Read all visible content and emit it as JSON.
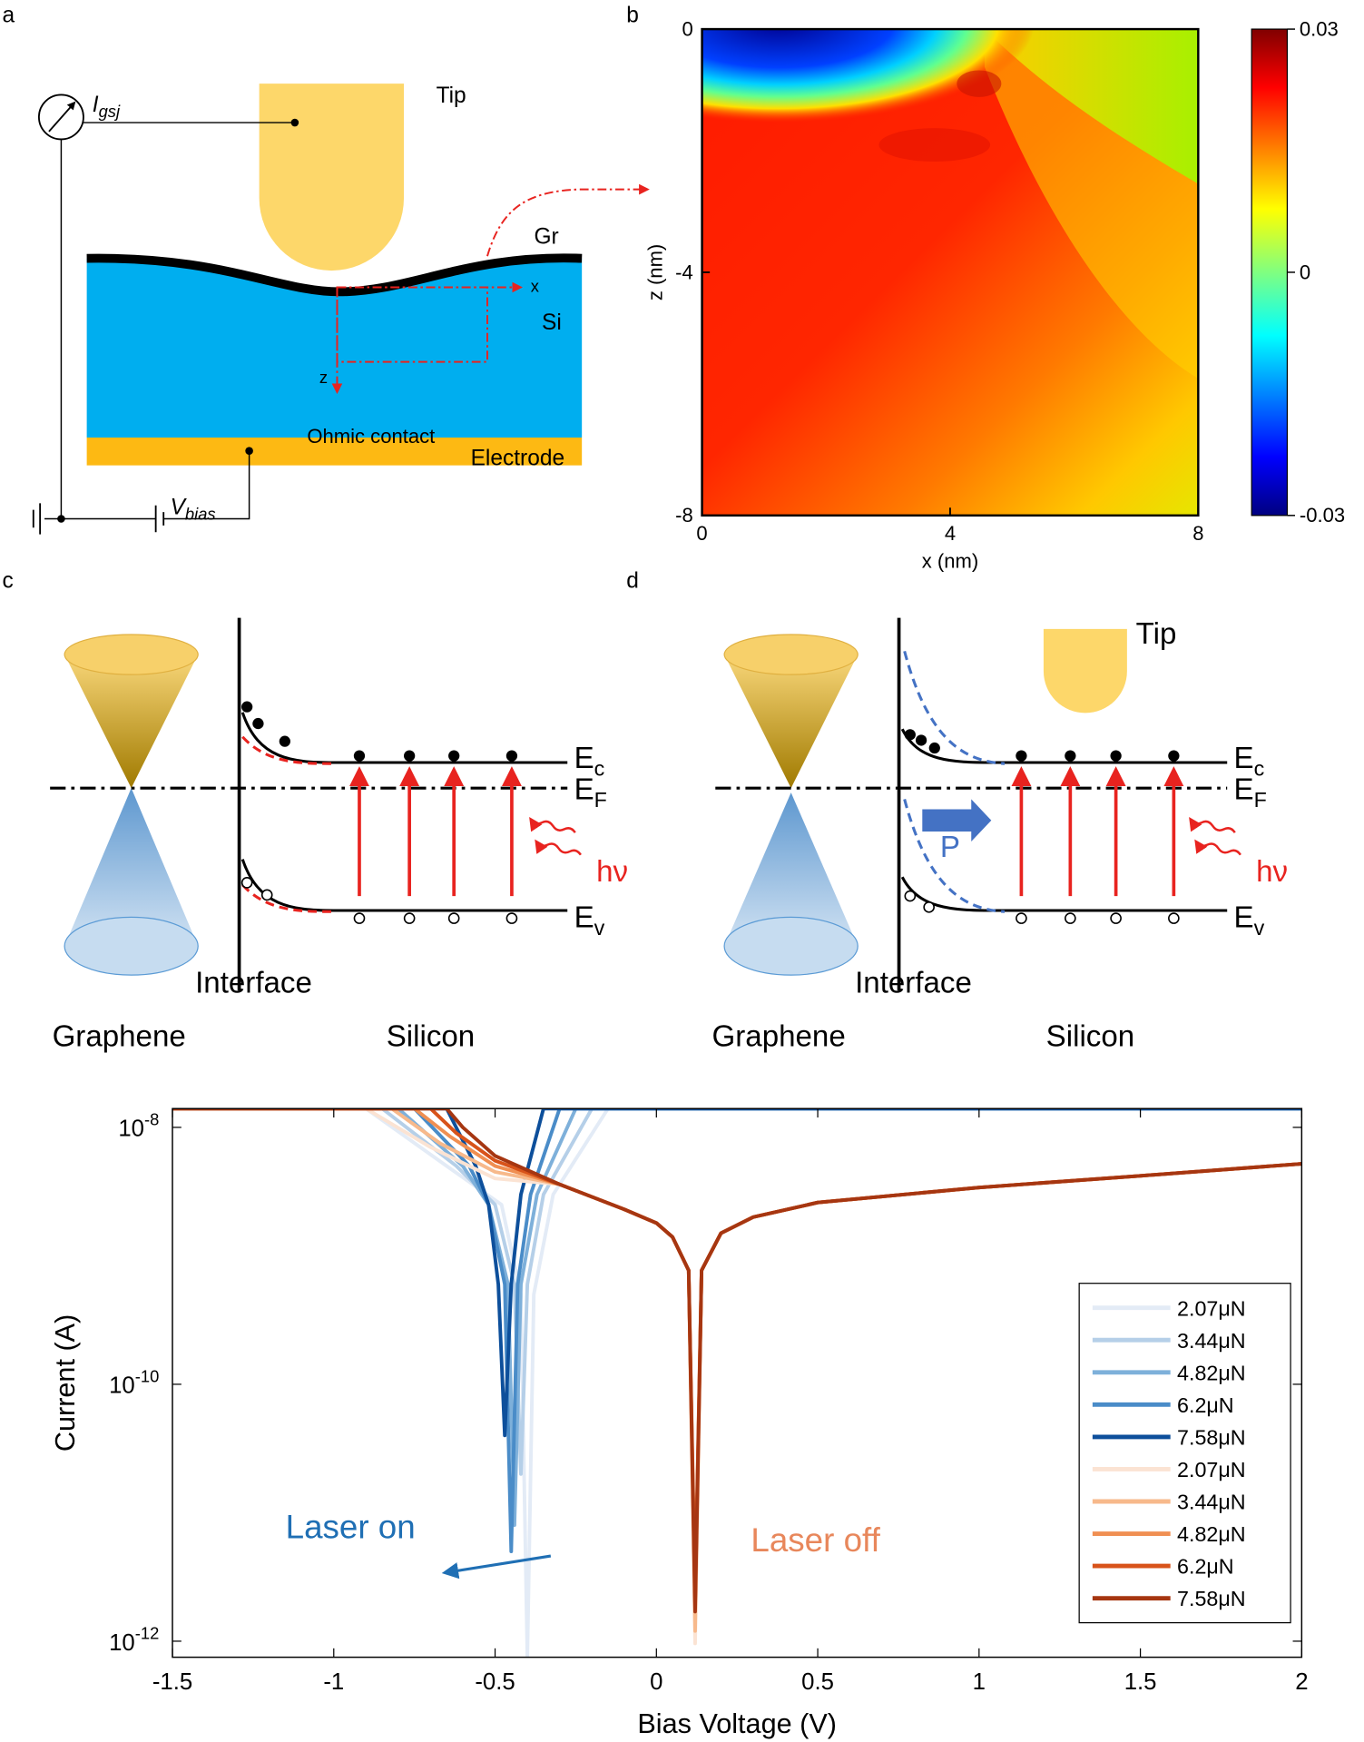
{
  "panel_labels": {
    "a": "a",
    "b": "b",
    "c": "c",
    "d": "d"
  },
  "panel_a": {
    "current": {
      "symbol": "I",
      "subscript": "gsj"
    },
    "tip": "Tip",
    "graphene": "Gr",
    "x_axis": "x",
    "silicon": "Si",
    "z_axis": "z",
    "contact": "Ohmic contact",
    "electrode": "Electrode",
    "bias": {
      "symbol": "V",
      "subscript": "bias"
    }
  },
  "panel_c": {
    "ec": {
      "symbol": "E",
      "subscript": "c"
    },
    "ef": {
      "symbol": "E",
      "subscript": "F"
    },
    "ev": {
      "symbol": "E",
      "subscript": "v"
    },
    "photon": "hν",
    "interface": "Interface",
    "left": "Graphene",
    "right": "Silicon"
  },
  "panel_d": {
    "tip": "Tip",
    "polarization": "P",
    "ec": {
      "symbol": "E",
      "subscript": "c"
    },
    "ef": {
      "symbol": "E",
      "subscript": "F"
    },
    "ev": {
      "symbol": "E",
      "subscript": "v"
    },
    "photon": "hν",
    "interface": "Interface",
    "left": "Graphene",
    "right": "Silicon"
  },
  "chart_data": [
    {
      "type": "heatmap",
      "xlabel": "x (nm)",
      "ylabel": "z (nm)",
      "xlim": [
        0,
        8
      ],
      "xticks": [
        0,
        4,
        8
      ],
      "ylim": [
        -8,
        0
      ],
      "yticks": [
        0,
        -4,
        -8
      ],
      "colorbar": {
        "lim": [
          -0.03,
          0.03
        ],
        "ticks": [
          0.03,
          0,
          -0.03
        ]
      }
    },
    {
      "type": "line",
      "xlabel": "Bias Voltage (V)",
      "ylabel": "Current (A)",
      "log_y": true,
      "xlim": [
        -1.5,
        2
      ],
      "xticks": [
        -1.5,
        -1,
        -0.5,
        0,
        0.5,
        1,
        1.5,
        2
      ],
      "ylim": [
        7.5e-13,
        1.4e-08
      ],
      "yticks": [
        {
          "value": 1e-08,
          "label": "10",
          "exponent": "-8"
        },
        {
          "value": 1e-10,
          "label": "10",
          "exponent": "-10"
        },
        {
          "value": 1e-12,
          "label": "10",
          "exponent": "-12"
        }
      ],
      "annotations": [
        "Laser on",
        "Laser off"
      ],
      "series": [
        {
          "name": "2.07μN",
          "color": "#e3ebf6",
          "x": [
            -1.5,
            -0.9,
            -0.65,
            -0.48,
            -0.42,
            -0.4,
            -0.38,
            -0.32,
            -0.15,
            2
          ],
          "values": [
            1.4e-08,
            1.4e-08,
            5e-09,
            2.5e-09,
            5e-10,
            7.5e-13,
            5e-10,
            3e-09,
            1.4e-08,
            1.4e-08
          ]
        },
        {
          "name": "3.44μN",
          "color": "#b5cfe8",
          "x": [
            -1.5,
            -0.85,
            -0.62,
            -0.5,
            -0.44,
            -0.42,
            -0.4,
            -0.35,
            -0.2,
            2
          ],
          "values": [
            1.4e-08,
            1.4e-08,
            5e-09,
            2.5e-09,
            6e-10,
            2e-11,
            6e-10,
            3e-09,
            1.4e-08,
            1.4e-08
          ]
        },
        {
          "name": "4.82μN",
          "color": "#7eb0da",
          "x": [
            -1.5,
            -0.8,
            -0.6,
            -0.52,
            -0.46,
            -0.44,
            -0.42,
            -0.37,
            -0.25,
            2
          ],
          "values": [
            1.4e-08,
            1.4e-08,
            5e-09,
            2.5e-09,
            6e-10,
            8e-12,
            6e-10,
            3e-09,
            1.4e-08,
            1.4e-08
          ]
        },
        {
          "name": "6.2μN",
          "color": "#4a8cc8",
          "x": [
            -1.5,
            -0.75,
            -0.58,
            -0.52,
            -0.47,
            -0.45,
            -0.43,
            -0.39,
            -0.3,
            2
          ],
          "values": [
            1.4e-08,
            1.4e-08,
            5e-09,
            2.5e-09,
            6e-10,
            5e-12,
            6e-10,
            3e-09,
            1.4e-08,
            1.4e-08
          ]
        },
        {
          "name": "7.58μN",
          "color": "#0d4f9b",
          "x": [
            -1.5,
            -0.65,
            -0.56,
            -0.52,
            -0.49,
            -0.47,
            -0.45,
            -0.42,
            -0.35,
            2
          ],
          "values": [
            1.4e-08,
            1.4e-08,
            5e-09,
            2.5e-09,
            6e-10,
            4e-11,
            6e-10,
            3e-09,
            1.4e-08,
            1.4e-08
          ]
        },
        {
          "name": "2.07μN",
          "color": "#fbe3d3",
          "x": [
            -1.5,
            -0.9,
            -0.7,
            -0.5,
            -0.3,
            -0.1,
            0,
            0.05,
            0.1,
            0.12,
            0.14,
            0.2,
            0.3,
            0.5,
            1,
            1.5,
            2
          ],
          "values": [
            1.4e-08,
            1.4e-08,
            7e-09,
            4e-09,
            3.6e-09,
            2.3e-09,
            1.8e-09,
            1.4e-09,
            7.7e-10,
            9.6e-13,
            7.7e-10,
            1.5e-09,
            2e-09,
            2.6e-09,
            3.4e-09,
            4.2e-09,
            5.2e-09
          ]
        },
        {
          "name": "3.44μN",
          "color": "#f7b98b",
          "x": [
            -1.5,
            -0.82,
            -0.67,
            -0.5,
            -0.3,
            -0.1,
            0,
            0.05,
            0.1,
            0.12,
            0.14,
            0.2,
            0.3,
            0.5,
            1,
            1.5,
            2
          ],
          "values": [
            1.4e-08,
            1.4e-08,
            7.5e-09,
            4.5e-09,
            3.6e-09,
            2.3e-09,
            1.8e-09,
            1.4e-09,
            7.7e-10,
            1.2e-12,
            7.7e-10,
            1.5e-09,
            2e-09,
            2.6e-09,
            3.4e-09,
            4.2e-09,
            5.2e-09
          ]
        },
        {
          "name": "4.82μN",
          "color": "#f08f52",
          "x": [
            -1.5,
            -0.75,
            -0.64,
            -0.5,
            -0.3,
            -0.1,
            0,
            0.05,
            0.1,
            0.12,
            0.14,
            0.2,
            0.3,
            0.5,
            1,
            1.5,
            2
          ],
          "values": [
            1.4e-08,
            1.4e-08,
            8.5e-09,
            5e-09,
            3.6e-09,
            2.3e-09,
            1.8e-09,
            1.4e-09,
            7.7e-10,
            2.5e-12,
            7.7e-10,
            1.5e-09,
            2e-09,
            2.6e-09,
            3.4e-09,
            4.2e-09,
            5.2e-09
          ]
        },
        {
          "name": "6.2μN",
          "color": "#d8531a",
          "x": [
            -1.5,
            -0.7,
            -0.62,
            -0.5,
            -0.3,
            -0.1,
            0,
            0.05,
            0.1,
            0.12,
            0.14,
            0.2,
            0.3,
            0.5,
            1,
            1.5,
            2
          ],
          "values": [
            1.4e-08,
            1.4e-08,
            9e-09,
            5.5e-09,
            3.6e-09,
            2.3e-09,
            1.8e-09,
            1.4e-09,
            7.7e-10,
            2e-12,
            7.7e-10,
            1.5e-09,
            2e-09,
            2.6e-09,
            3.4e-09,
            4.2e-09,
            5.2e-09
          ]
        },
        {
          "name": "7.58μN",
          "color": "#a63611",
          "x": [
            -1.5,
            -0.65,
            -0.6,
            -0.5,
            -0.3,
            -0.1,
            0,
            0.05,
            0.1,
            0.12,
            0.14,
            0.2,
            0.3,
            0.5,
            1,
            1.5,
            2
          ],
          "values": [
            1.4e-08,
            1.4e-08,
            1e-08,
            6e-09,
            3.6e-09,
            2.3e-09,
            1.8e-09,
            1.4e-09,
            7.7e-10,
            1.7e-12,
            7.7e-10,
            1.5e-09,
            2e-09,
            2.6e-09,
            3.4e-09,
            4.2e-09,
            5.2e-09
          ]
        }
      ]
    }
  ]
}
